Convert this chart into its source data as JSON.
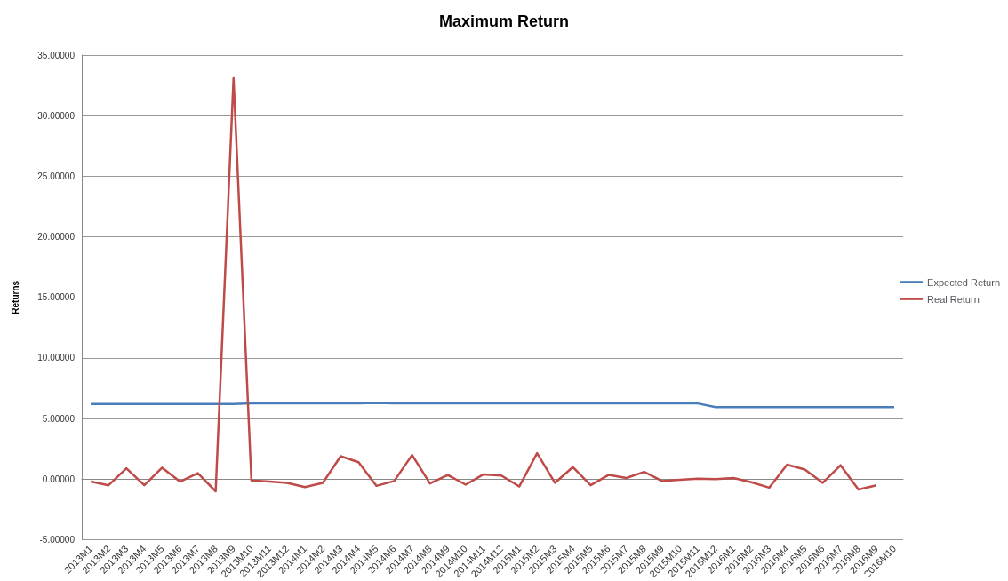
{
  "chart_data": {
    "type": "line",
    "title": "Maximum Return",
    "ylabel": "Returns",
    "categories": [
      "2013M1",
      "2013M2",
      "2013M3",
      "2013M4",
      "2013M5",
      "2013M6",
      "2013M7",
      "2013M8",
      "2013M9",
      "2013M10",
      "2013M11",
      "2013M12",
      "2014M1",
      "2014M2",
      "2014M3",
      "2014M4",
      "2014M5",
      "2014M6",
      "2014M7",
      "2014M8",
      "2014M9",
      "2014M10",
      "2014M11",
      "2014M12",
      "2015M1",
      "2015M2",
      "2015M3",
      "2015M4",
      "2015M5",
      "2015M6",
      "2015M7",
      "2015M8",
      "2015M9",
      "2015M10",
      "2015M11",
      "2015M12",
      "2016M1",
      "2016M2",
      "2016M3",
      "2016M4",
      "2016M5",
      "2016M6",
      "2016M7",
      "2016M8",
      "2016M9",
      "2016M10"
    ],
    "series": [
      {
        "name": "Expected Return",
        "color": "#4a7ebb",
        "values": [
          6.2,
          6.2,
          6.2,
          6.2,
          6.2,
          6.2,
          6.2,
          6.2,
          6.2,
          6.25,
          6.25,
          6.25,
          6.25,
          6.25,
          6.25,
          6.25,
          6.3,
          6.25,
          6.25,
          6.25,
          6.25,
          6.25,
          6.25,
          6.25,
          6.25,
          6.25,
          6.25,
          6.25,
          6.25,
          6.25,
          6.25,
          6.25,
          6.25,
          6.25,
          6.25,
          5.95,
          5.95,
          5.95,
          5.95,
          5.95,
          5.95,
          5.95,
          5.95,
          5.95,
          5.95,
          5.95
        ]
      },
      {
        "name": "Real Return",
        "color": "#be4b48",
        "values": [
          -0.2,
          -0.5,
          0.9,
          -0.5,
          0.95,
          -0.2,
          0.5,
          -1.0,
          33.1,
          -0.1,
          -0.2,
          -0.3,
          -0.65,
          -0.3,
          1.9,
          1.4,
          -0.55,
          -0.15,
          2.0,
          -0.35,
          0.35,
          -0.45,
          0.4,
          0.3,
          -0.6,
          2.15,
          -0.3,
          1.0,
          -0.5,
          0.35,
          0.1,
          0.6,
          -0.15,
          -0.05,
          0.05,
          0,
          0.1,
          -0.25,
          -0.7,
          1.2,
          0.8,
          -0.3,
          1.15,
          -0.85,
          -0.5,
          null
        ]
      }
    ],
    "ylim": [
      -5,
      35
    ],
    "yticks": [
      {
        "value": -5,
        "label": "-5.00000"
      },
      {
        "value": 0,
        "label": "0.00000"
      },
      {
        "value": 5,
        "label": "5.00000"
      },
      {
        "value": 10,
        "label": "10.00000"
      },
      {
        "value": 15,
        "label": "15.00000"
      },
      {
        "value": 20,
        "label": "20.00000"
      },
      {
        "value": 25,
        "label": "25.00000"
      },
      {
        "value": 30,
        "label": "30.00000"
      },
      {
        "value": 35,
        "label": "35.00000"
      }
    ],
    "grid": "y",
    "legend": "right",
    "marker": "none",
    "line_style": "solid"
  }
}
